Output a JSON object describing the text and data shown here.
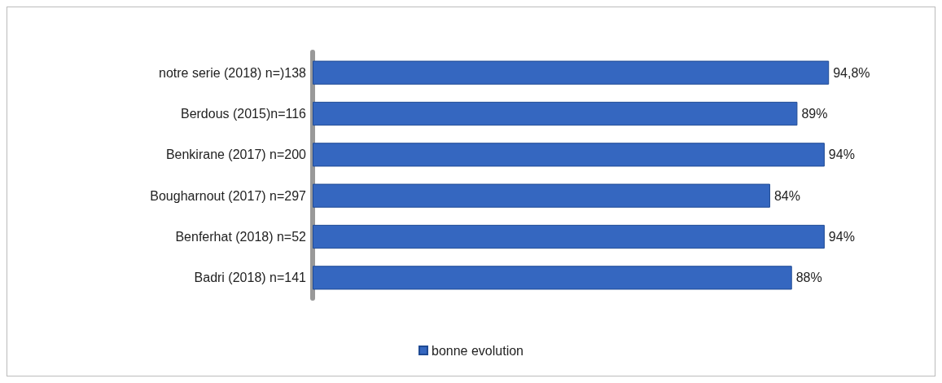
{
  "chart_data": {
    "type": "bar",
    "orientation": "horizontal",
    "categories": [
      "notre serie (2018) n=)138",
      "Berdous (2015)n=116",
      "Benkirane (2017) n=200",
      "Bougharnout (2017) n=297",
      "Benferhat (2018) n=52",
      "Badri (2018) n=141"
    ],
    "series": [
      {
        "name": "bonne evolution",
        "color": "#3567c0",
        "values": [
          94.8,
          89,
          94,
          84,
          94,
          88
        ],
        "value_labels": [
          "94,8%",
          "89%",
          "94%",
          "84%",
          "94%",
          "88%"
        ]
      }
    ],
    "legend": "bottom"
  }
}
